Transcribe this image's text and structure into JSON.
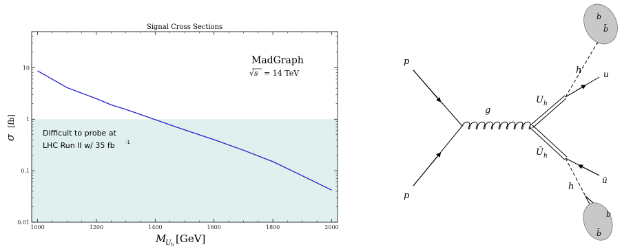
{
  "chart_data": {
    "type": "line",
    "title": "Signal Cross Sections",
    "xlabel": "M",
    "xlabel_sub": "U",
    "xlabel_subsub": "h",
    "xlabel_unit": "[GeV]",
    "ylabel_symbol": "σ",
    "ylabel_unit": "[fb]",
    "xlim": [
      980,
      2020
    ],
    "ylim": [
      0.01,
      50
    ],
    "yscale": "log",
    "xticks": [
      "1000",
      "1200",
      "1400",
      "1600",
      "1800",
      "2000"
    ],
    "xtick_values": [
      1000,
      1200,
      1400,
      1600,
      1800,
      2000
    ],
    "yticks": [
      "0.01",
      "0.1",
      "1",
      "10"
    ],
    "ytick_values": [
      0.01,
      0.1,
      1,
      10
    ],
    "series": [
      {
        "color": "#1f1fd0",
        "x": [
          1000,
          1100,
          1200,
          1250,
          1300,
          1400,
          1500,
          1600,
          1700,
          1800,
          1900,
          2000
        ],
        "y": [
          8.7,
          4.1,
          2.5,
          1.9,
          1.55,
          0.98,
          0.62,
          0.4,
          0.25,
          0.15,
          0.08,
          0.042
        ]
      }
    ],
    "shaded_region": {
      "ymin": 0.01,
      "ymax": 1.0,
      "color": "#dff0ef"
    },
    "annotations": {
      "generator": "MadGraph",
      "energy_lhs": "√s",
      "energy_rhs": "= 14 TeV",
      "region_label_line1": "Difficult to probe at",
      "region_label_line2": "LHC Run II w/ 35 fb",
      "region_label_sup": "-1"
    }
  },
  "diagram": {
    "incoming_top": "p",
    "incoming_bottom": "p",
    "gluon": "g",
    "upper_heavy": "U",
    "upper_heavy_sub": "h",
    "lower_heavy": "Ū",
    "lower_heavy_sub": "h",
    "higgs_top": "h",
    "higgs_bottom": "h",
    "quark_top": "u",
    "quark_bottom": "ū",
    "b_top": "b",
    "bbar_top": "b̄",
    "b_bottom": "b",
    "bbar_bottom": "b̄",
    "blob_color": "#c8c8c8"
  }
}
